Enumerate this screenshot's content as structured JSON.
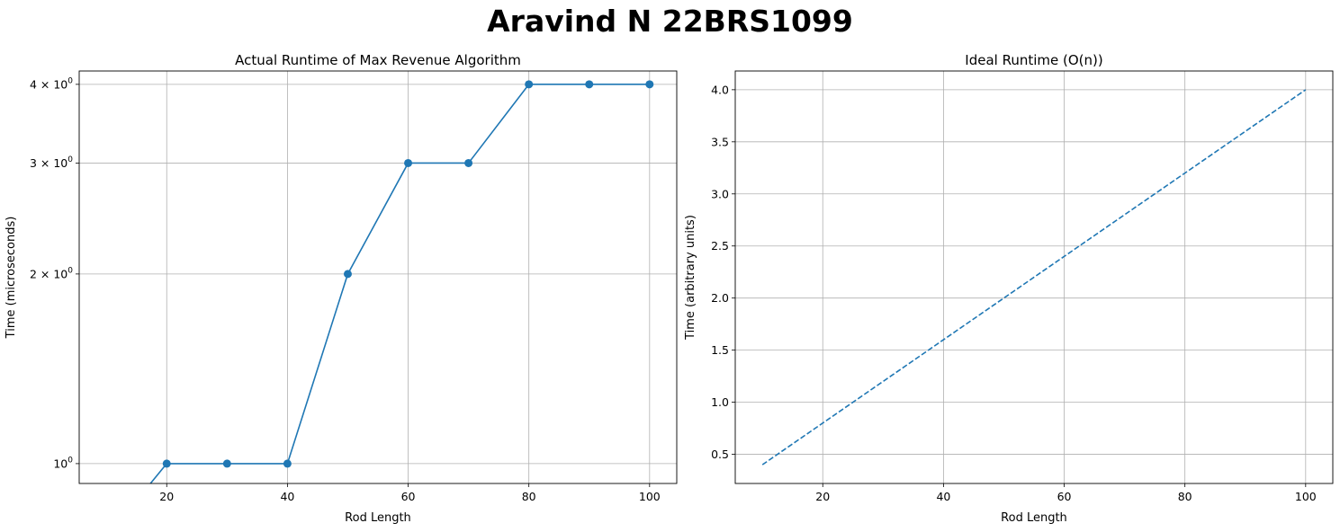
{
  "suptitle": "Aravind N 22BRS1099",
  "chart_data": [
    {
      "type": "line",
      "title": "Actual Runtime of Max Revenue Algorithm",
      "xlabel": "Rod Length",
      "ylabel": "Time (microseconds)",
      "yscale": "log",
      "grid": true,
      "xlim": [
        5.5,
        104.5
      ],
      "ylim": [
        0.93,
        4.2
      ],
      "xticks": [
        20,
        40,
        60,
        80,
        100
      ],
      "yticks": [
        {
          "value": 1,
          "base": "10",
          "exp": "0"
        },
        {
          "value": 2,
          "base": "2 × 10",
          "exp": "0"
        },
        {
          "value": 3,
          "base": "3 × 10",
          "exp": "0"
        },
        {
          "value": 4,
          "base": "4 × 10",
          "exp": "0"
        }
      ],
      "series": [
        {
          "color": "#1f77b4",
          "marker": "circle",
          "linestyle": "solid",
          "x": [
            10,
            20,
            30,
            40,
            50,
            60,
            70,
            80,
            90,
            100
          ],
          "y": [
            0,
            1,
            1,
            1,
            2,
            3,
            3,
            4,
            4,
            4
          ]
        }
      ]
    },
    {
      "type": "line",
      "title": "Ideal Runtime (O(n))",
      "xlabel": "Rod Length",
      "ylabel": "Time (arbitrary units)",
      "yscale": "linear",
      "grid": true,
      "xlim": [
        5.5,
        104.5
      ],
      "ylim": [
        0.22,
        4.18
      ],
      "xticks": [
        20,
        40,
        60,
        80,
        100
      ],
      "yticks": [
        {
          "value": 0.5,
          "label": "0.5"
        },
        {
          "value": 1.0,
          "label": "1.0"
        },
        {
          "value": 1.5,
          "label": "1.5"
        },
        {
          "value": 2.0,
          "label": "2.0"
        },
        {
          "value": 2.5,
          "label": "2.5"
        },
        {
          "value": 3.0,
          "label": "3.0"
        },
        {
          "value": 3.5,
          "label": "3.5"
        },
        {
          "value": 4.0,
          "label": "4.0"
        }
      ],
      "series": [
        {
          "color": "#1f77b4",
          "marker": "none",
          "linestyle": "dashed",
          "x": [
            10,
            100
          ],
          "y": [
            0.4,
            4.0
          ]
        }
      ]
    }
  ]
}
